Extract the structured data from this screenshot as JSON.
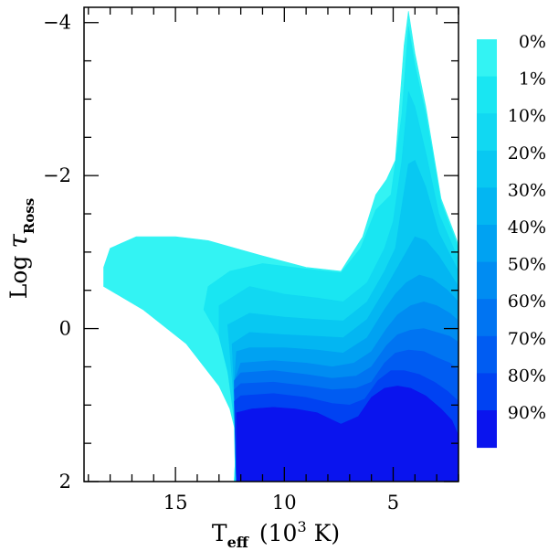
{
  "chart_data": {
    "type": "area",
    "xaxis": {
      "label_main": "T",
      "label_sub": "eff",
      "label_tail": "(10",
      "label_sup": "3",
      "label_unit": "K)",
      "range": [
        19.2,
        2.0
      ],
      "major_ticks": [
        15,
        10,
        5
      ],
      "minor_step": 1
    },
    "yaxis": {
      "label_main": "Log ",
      "label_tau": "τ",
      "label_sub": "Ross",
      "range": [
        2.0,
        -4.2
      ],
      "major_ticks": [
        2,
        0,
        -2,
        -4
      ],
      "minor_step": 0.5
    },
    "legend": {
      "placement": "right",
      "labels": [
        "0%",
        "1%",
        "10%",
        "20%",
        "30%",
        "40%",
        "50%",
        "60%",
        "70%",
        "80%",
        "90%"
      ]
    },
    "levels": [
      {
        "name": "0%",
        "color": "#33f3f3",
        "boundary": [
          [
            18.3,
            -0.8
          ],
          [
            18.0,
            -1.05
          ],
          [
            16.8,
            -1.2
          ],
          [
            15.0,
            -1.2
          ],
          [
            13.5,
            -1.15
          ],
          [
            11.0,
            -0.95
          ],
          [
            9.0,
            -0.8
          ],
          [
            7.4,
            -0.75
          ],
          [
            6.4,
            -1.2
          ],
          [
            5.8,
            -1.75
          ],
          [
            5.3,
            -1.95
          ],
          [
            4.9,
            -2.2
          ],
          [
            4.5,
            -3.7
          ],
          [
            4.3,
            -4.15
          ],
          [
            4.0,
            -3.6
          ],
          [
            3.5,
            -2.9
          ],
          [
            2.8,
            -1.7
          ],
          [
            2.0,
            -1.1
          ],
          [
            2.0,
            2.0
          ],
          [
            12.3,
            2.0
          ],
          [
            12.2,
            1.4
          ],
          [
            12.5,
            1.05
          ],
          [
            13.0,
            0.75
          ],
          [
            14.5,
            0.2
          ],
          [
            16.5,
            -0.25
          ],
          [
            18.3,
            -0.55
          ]
        ]
      },
      {
        "name": "1%",
        "color": "#19e6f2",
        "boundary": [
          [
            12.3,
            2.0
          ],
          [
            12.2,
            1.4
          ],
          [
            12.2,
            1.05
          ],
          [
            13.0,
            0.1
          ],
          [
            13.7,
            -0.25
          ],
          [
            13.5,
            -0.55
          ],
          [
            12.5,
            -0.75
          ],
          [
            11.0,
            -0.85
          ],
          [
            9.0,
            -0.78
          ],
          [
            7.4,
            -0.73
          ],
          [
            6.5,
            -1.05
          ],
          [
            5.8,
            -1.55
          ],
          [
            5.1,
            -1.75
          ],
          [
            4.6,
            -2.8
          ],
          [
            4.3,
            -3.95
          ],
          [
            4.0,
            -3.45
          ],
          [
            3.5,
            -2.8
          ],
          [
            2.8,
            -1.65
          ],
          [
            2.0,
            -1.05
          ],
          [
            2.0,
            2.0
          ]
        ]
      },
      {
        "name": "10%",
        "color": "#11d8f2",
        "boundary": [
          [
            12.25,
            2.0
          ],
          [
            12.3,
            1.2
          ],
          [
            12.6,
            0.55
          ],
          [
            13.0,
            0.1
          ],
          [
            13.0,
            -0.3
          ],
          [
            11.6,
            -0.55
          ],
          [
            10.0,
            -0.45
          ],
          [
            8.5,
            -0.4
          ],
          [
            7.3,
            -0.35
          ],
          [
            6.2,
            -0.6
          ],
          [
            5.4,
            -1.05
          ],
          [
            5.0,
            -1.4
          ],
          [
            4.6,
            -2.2
          ],
          [
            4.3,
            -3.1
          ],
          [
            4.0,
            -2.9
          ],
          [
            3.5,
            -2.3
          ],
          [
            2.9,
            -1.5
          ],
          [
            2.0,
            -0.9
          ],
          [
            2.0,
            2.0
          ]
        ]
      },
      {
        "name": "20%",
        "color": "#08c8f2",
        "boundary": [
          [
            12.2,
            2.0
          ],
          [
            12.3,
            1.0
          ],
          [
            12.5,
            0.3
          ],
          [
            12.6,
            -0.05
          ],
          [
            11.6,
            -0.2
          ],
          [
            10.0,
            -0.15
          ],
          [
            8.5,
            -0.12
          ],
          [
            7.3,
            -0.1
          ],
          [
            6.2,
            -0.35
          ],
          [
            5.4,
            -0.75
          ],
          [
            4.9,
            -1.05
          ],
          [
            4.6,
            -1.6
          ],
          [
            4.3,
            -2.15
          ],
          [
            4.0,
            -2.2
          ],
          [
            3.5,
            -1.85
          ],
          [
            2.9,
            -1.25
          ],
          [
            2.0,
            -0.75
          ],
          [
            2.0,
            2.0
          ]
        ]
      },
      {
        "name": "30%",
        "color": "#03b6f2",
        "boundary": [
          [
            12.2,
            2.0
          ],
          [
            12.3,
            0.85
          ],
          [
            12.4,
            0.2
          ],
          [
            11.6,
            0.05
          ],
          [
            10.0,
            0.08
          ],
          [
            8.5,
            0.1
          ],
          [
            7.3,
            0.12
          ],
          [
            6.2,
            -0.12
          ],
          [
            5.4,
            -0.5
          ],
          [
            4.9,
            -0.75
          ],
          [
            4.5,
            -0.95
          ],
          [
            4.0,
            -1.2
          ],
          [
            3.5,
            -1.15
          ],
          [
            2.9,
            -0.95
          ],
          [
            2.0,
            -0.55
          ],
          [
            2.0,
            2.0
          ]
        ]
      },
      {
        "name": "40%",
        "color": "#00a2f2",
        "boundary": [
          [
            12.2,
            2.0
          ],
          [
            12.3,
            0.75
          ],
          [
            12.2,
            0.3
          ],
          [
            11.6,
            0.25
          ],
          [
            10.0,
            0.25
          ],
          [
            8.5,
            0.28
          ],
          [
            7.3,
            0.32
          ],
          [
            6.2,
            0.12
          ],
          [
            5.4,
            -0.25
          ],
          [
            4.9,
            -0.45
          ],
          [
            4.4,
            -0.6
          ],
          [
            3.8,
            -0.7
          ],
          [
            3.2,
            -0.65
          ],
          [
            2.5,
            -0.5
          ],
          [
            2.0,
            -0.35
          ],
          [
            2.0,
            2.0
          ]
        ]
      },
      {
        "name": "50%",
        "color": "#008cf2",
        "boundary": [
          [
            12.2,
            2.0
          ],
          [
            12.3,
            0.7
          ],
          [
            12.0,
            0.45
          ],
          [
            10.5,
            0.42
          ],
          [
            9.0,
            0.45
          ],
          [
            7.8,
            0.5
          ],
          [
            6.8,
            0.45
          ],
          [
            6.0,
            0.3
          ],
          [
            5.3,
            0.0
          ],
          [
            4.8,
            -0.18
          ],
          [
            4.2,
            -0.3
          ],
          [
            3.6,
            -0.35
          ],
          [
            3.0,
            -0.3
          ],
          [
            2.4,
            -0.2
          ],
          [
            2.0,
            -0.1
          ],
          [
            2.0,
            2.0
          ]
        ]
      },
      {
        "name": "60%",
        "color": "#0074f2",
        "boundary": [
          [
            12.2,
            2.0
          ],
          [
            12.3,
            0.68
          ],
          [
            12.0,
            0.58
          ],
          [
            10.5,
            0.55
          ],
          [
            9.0,
            0.6
          ],
          [
            7.8,
            0.65
          ],
          [
            6.7,
            0.62
          ],
          [
            6.0,
            0.5
          ],
          [
            5.3,
            0.22
          ],
          [
            4.8,
            0.08
          ],
          [
            4.2,
            0.02
          ],
          [
            3.6,
            0.0
          ],
          [
            3.0,
            0.05
          ],
          [
            2.4,
            0.1
          ],
          [
            2.0,
            0.18
          ],
          [
            2.0,
            2.0
          ]
        ]
      },
      {
        "name": "70%",
        "color": "#005cf2",
        "boundary": [
          [
            12.2,
            2.0
          ],
          [
            12.3,
            0.8
          ],
          [
            12.0,
            0.72
          ],
          [
            10.5,
            0.7
          ],
          [
            9.0,
            0.75
          ],
          [
            7.8,
            0.8
          ],
          [
            6.7,
            0.78
          ],
          [
            6.0,
            0.7
          ],
          [
            5.4,
            0.45
          ],
          [
            4.9,
            0.32
          ],
          [
            4.3,
            0.28
          ],
          [
            3.6,
            0.3
          ],
          [
            3.0,
            0.38
          ],
          [
            2.4,
            0.45
          ],
          [
            2.0,
            0.55
          ],
          [
            2.0,
            2.0
          ]
        ]
      },
      {
        "name": "80%",
        "color": "#0042f2",
        "boundary": [
          [
            12.2,
            2.0
          ],
          [
            12.3,
            0.95
          ],
          [
            12.0,
            0.88
          ],
          [
            10.5,
            0.85
          ],
          [
            9.0,
            0.9
          ],
          [
            7.8,
            0.98
          ],
          [
            7.0,
            1.0
          ],
          [
            6.3,
            0.92
          ],
          [
            5.7,
            0.68
          ],
          [
            5.1,
            0.55
          ],
          [
            4.5,
            0.55
          ],
          [
            3.8,
            0.6
          ],
          [
            3.1,
            0.7
          ],
          [
            2.5,
            0.82
          ],
          [
            2.0,
            0.95
          ],
          [
            2.0,
            2.0
          ]
        ]
      },
      {
        "name": "90%",
        "color": "#0a14ee",
        "boundary": [
          [
            12.2,
            2.0
          ],
          [
            12.2,
            1.1
          ],
          [
            11.5,
            1.05
          ],
          [
            10.5,
            1.03
          ],
          [
            9.5,
            1.05
          ],
          [
            8.5,
            1.1
          ],
          [
            7.4,
            1.25
          ],
          [
            6.6,
            1.15
          ],
          [
            6.0,
            0.9
          ],
          [
            5.4,
            0.78
          ],
          [
            4.8,
            0.75
          ],
          [
            4.2,
            0.78
          ],
          [
            3.5,
            0.88
          ],
          [
            2.8,
            1.05
          ],
          [
            2.3,
            1.2
          ],
          [
            2.0,
            1.4
          ],
          [
            2.0,
            2.0
          ]
        ]
      }
    ]
  }
}
